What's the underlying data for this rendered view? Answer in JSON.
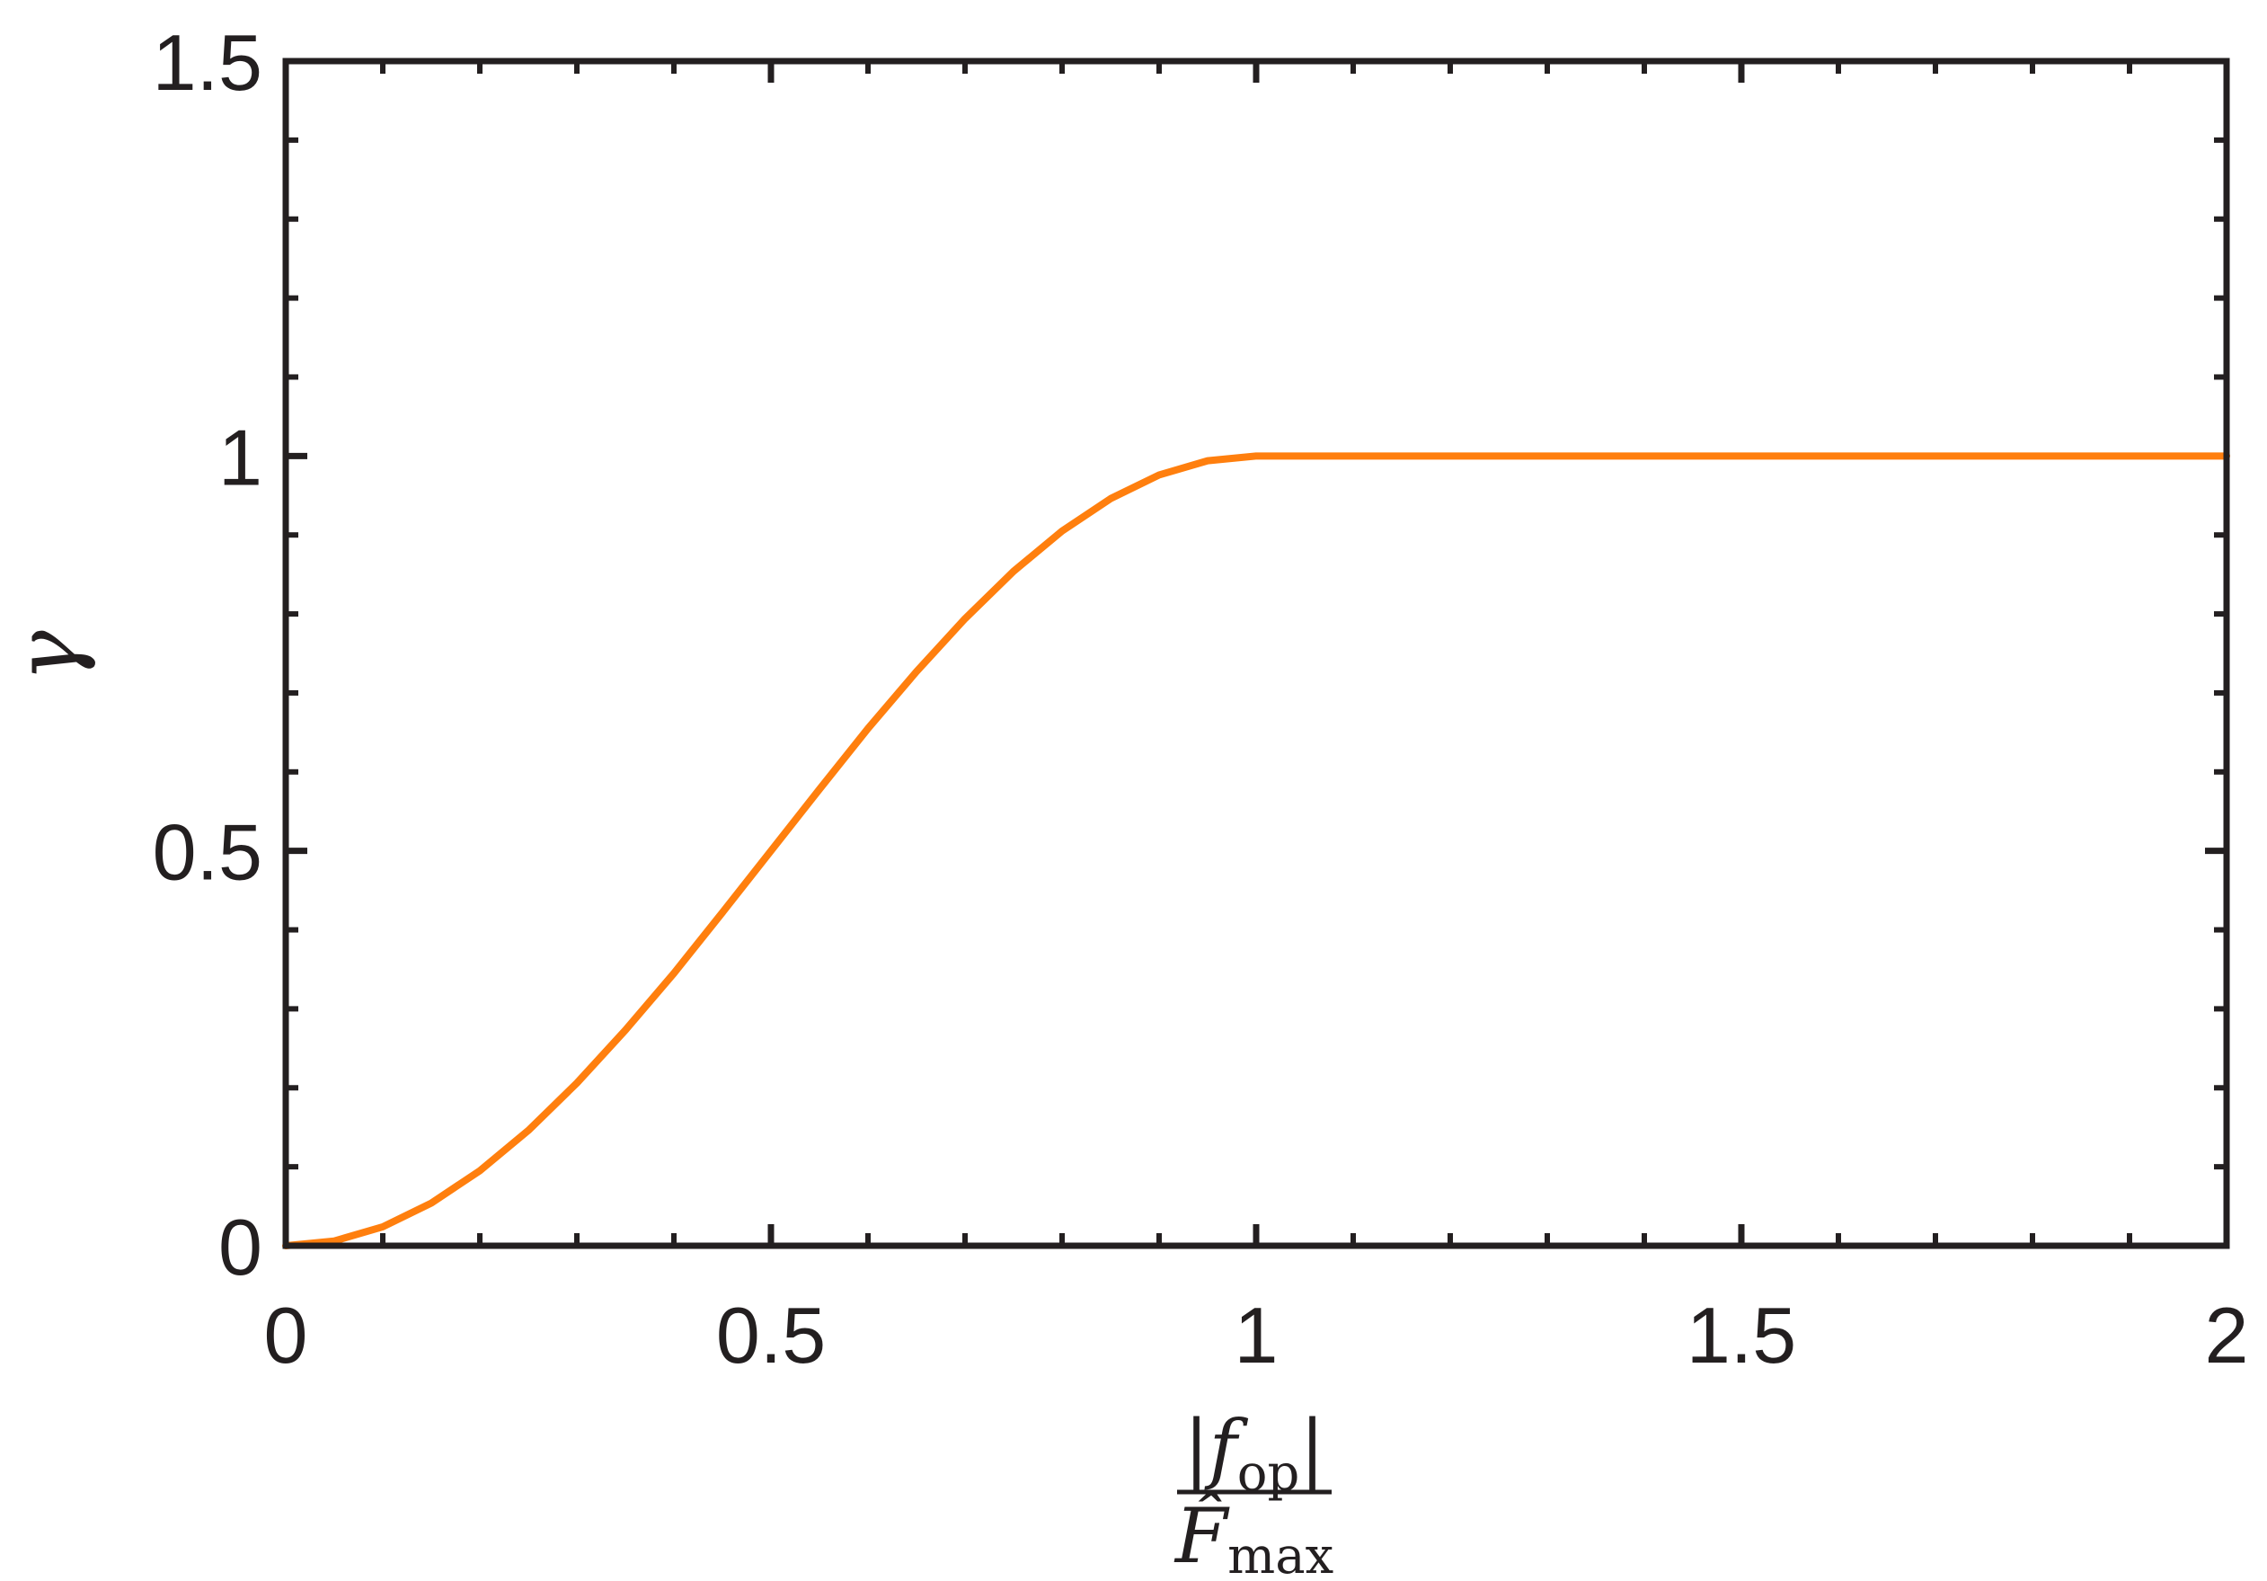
{
  "chart_data": {
    "type": "line",
    "title": "",
    "xlabel": {
      "numerator": "|f",
      "numerator_sub": "op",
      "numerator_close": "|",
      "denominator": "F̂",
      "denominator_sub": "max"
    },
    "ylabel": "γ",
    "xlim": [
      0,
      2
    ],
    "ylim": [
      0,
      1.5
    ],
    "xticks": [
      0,
      0.5,
      1,
      1.5,
      2
    ],
    "xtick_labels": [
      "0",
      "0.5",
      "1",
      "1.5",
      "2"
    ],
    "yticks": [
      0,
      0.5,
      1,
      1.5
    ],
    "ytick_labels": [
      "0",
      "0.5",
      "1",
      "1.5"
    ],
    "x_minor_step": 0.1,
    "y_minor_step": 0.1,
    "grid": false,
    "legend": "none",
    "series": [
      {
        "color": "#ff7f0e",
        "x": [
          0,
          0.05,
          0.1,
          0.15,
          0.2,
          0.25,
          0.3,
          0.35,
          0.4,
          0.45,
          0.5,
          0.55,
          0.6,
          0.65,
          0.7,
          0.75,
          0.8,
          0.85,
          0.9,
          0.95,
          1.0,
          1.25,
          1.5,
          1.75,
          2.0
        ],
        "y": [
          0,
          0.006,
          0.024,
          0.054,
          0.095,
          0.146,
          0.206,
          0.273,
          0.345,
          0.422,
          0.5,
          0.578,
          0.655,
          0.727,
          0.794,
          0.854,
          0.905,
          0.946,
          0.976,
          0.994,
          1.0,
          1.0,
          1.0,
          1.0,
          1.0
        ]
      }
    ]
  }
}
